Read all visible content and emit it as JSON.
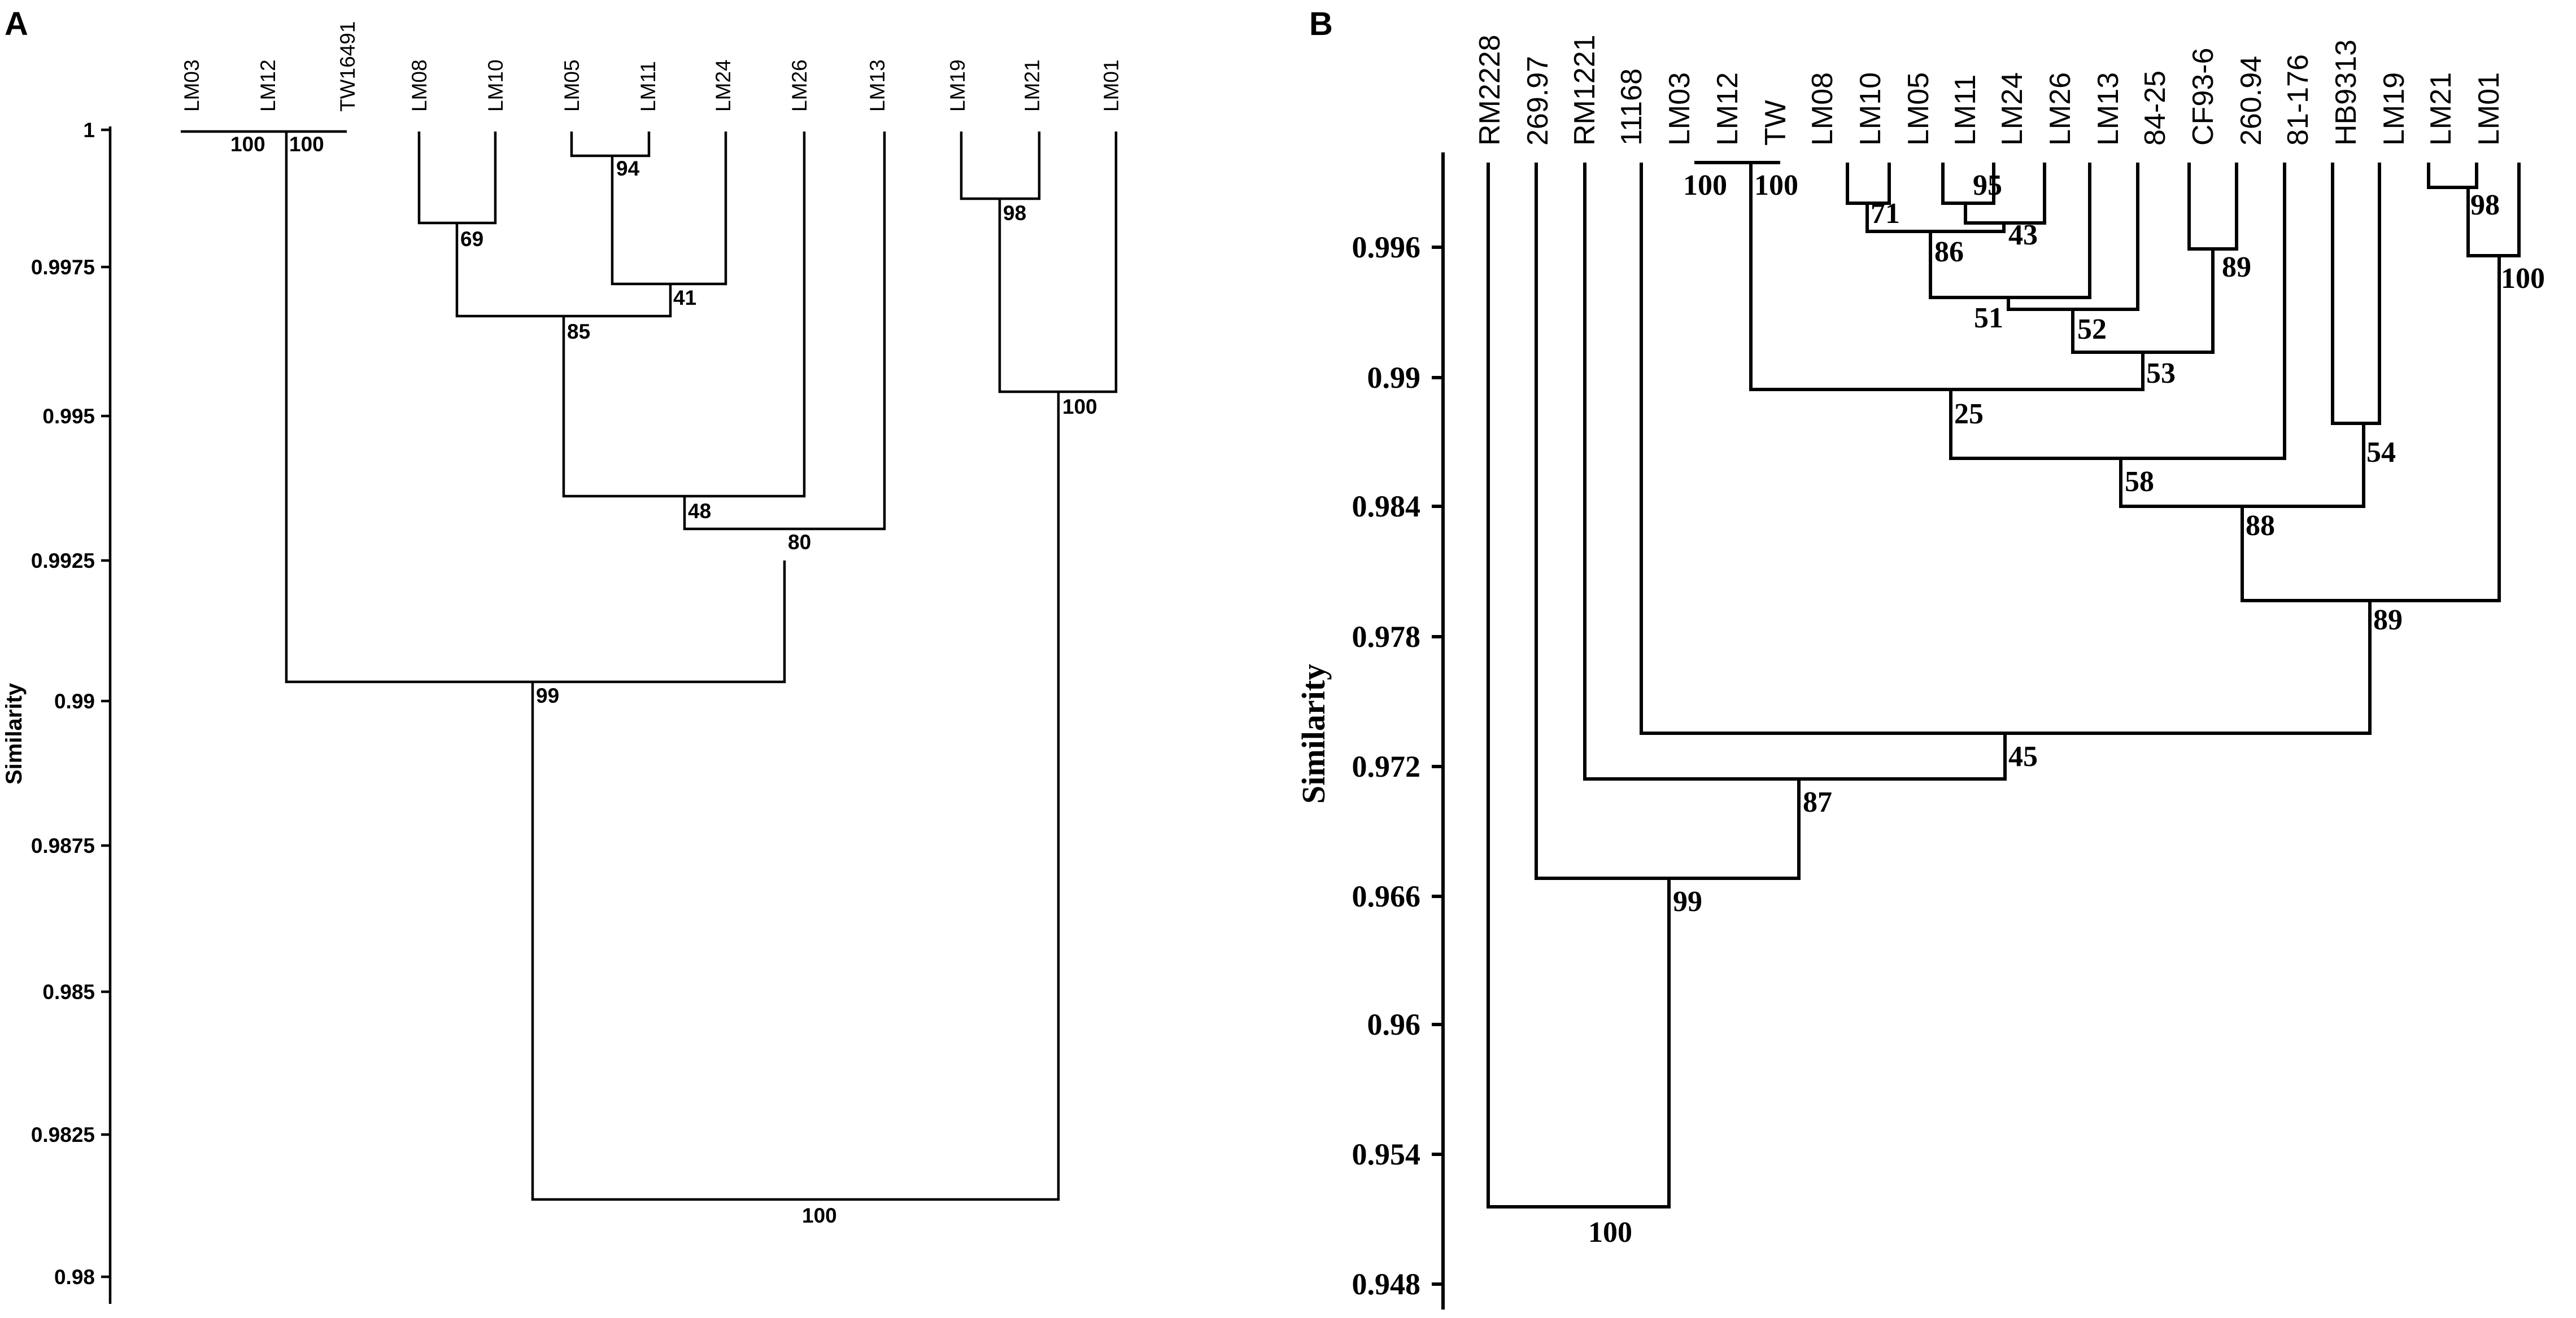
{
  "panel_a": {
    "letter": "A",
    "ylabel": "Similarity",
    "y_ticks": [
      "1",
      "0.9975",
      "0.995",
      "0.9925",
      "0.99",
      "0.9875",
      "0.985",
      "0.9825",
      "0.98"
    ],
    "leaves": [
      "LM03",
      "LM12",
      "TW16491",
      "LM08",
      "LM10",
      "LM05",
      "LM11",
      "LM24",
      "LM26",
      "LM13",
      "LM19",
      "LM21",
      "LM01"
    ],
    "bootstraps": [
      "100",
      "100",
      "94",
      "69",
      "41",
      "85",
      "48",
      "80",
      "98",
      "100",
      "99",
      "100"
    ]
  },
  "panel_b": {
    "letter": "B",
    "ylabel": "Similarity",
    "y_ticks": [
      "0.996",
      "0.99",
      "0.984",
      "0.978",
      "0.972",
      "0.966",
      "0.96",
      "0.954",
      "0.948"
    ],
    "leaves": [
      "RM2228",
      "269.97",
      "RM1221",
      "11168",
      "LM03",
      "LM12",
      "TW",
      "LM08",
      "LM10",
      "LM05",
      "LM11",
      "LM24",
      "LM26",
      "LM13",
      "84-25",
      "CF93-6",
      "260.94",
      "81-176",
      "HB9313",
      "LM19",
      "LM21",
      "LM01"
    ],
    "bootstraps": [
      "100",
      "100",
      "95",
      "71",
      "43",
      "86",
      "51",
      "52",
      "89",
      "53",
      "25",
      "58",
      "54",
      "88",
      "98",
      "100",
      "89",
      "45",
      "87",
      "99",
      "100"
    ]
  }
}
